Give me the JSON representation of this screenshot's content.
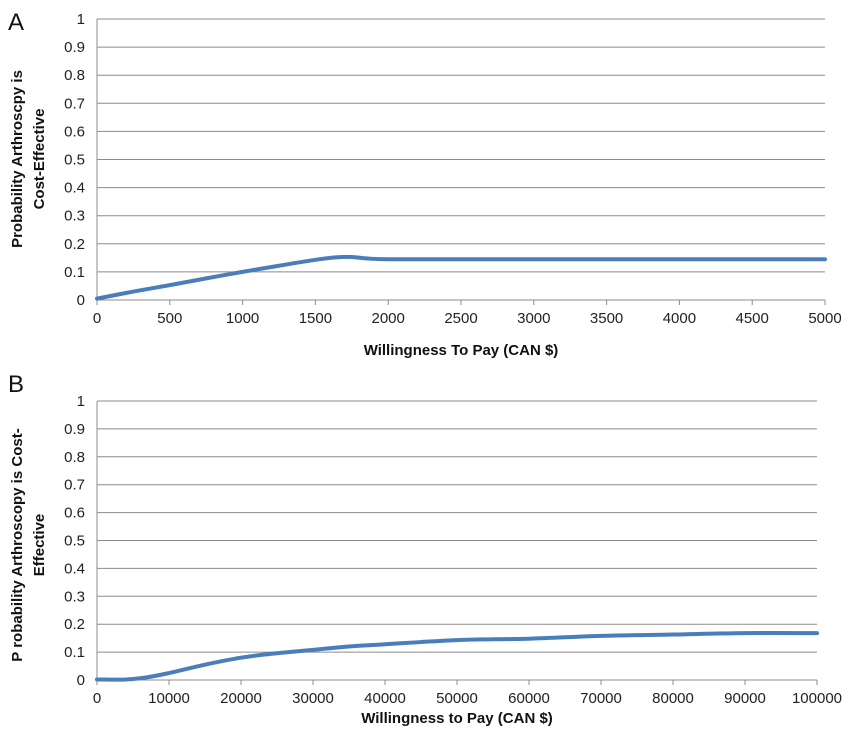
{
  "chart_data": [
    {
      "panel_label": "A",
      "type": "line",
      "xlabel": "Willingness To Pay (CAN $)",
      "ylabel_lines": [
        "Probability Arthroscpy is",
        "Cost-Effective"
      ],
      "xlim": [
        0,
        5000
      ],
      "ylim": [
        0,
        1
      ],
      "x_ticks": [
        "0",
        "500",
        "1000",
        "1500",
        "2000",
        "2500",
        "3000",
        "3500",
        "4000",
        "4500",
        "5000"
      ],
      "y_ticks": [
        "0",
        "0.1",
        "0.2",
        "0.3",
        "0.4",
        "0.5",
        "0.6",
        "0.7",
        "0.8",
        "0.9",
        "1"
      ],
      "grid": "horizontal",
      "series_color": "#4a7ebb",
      "series": [
        {
          "x": [
            0,
            250,
            500,
            750,
            1000,
            1250,
            1500,
            1650,
            1750,
            1850,
            2000,
            2500,
            3000,
            3500,
            4000,
            4500,
            5000
          ],
          "y": [
            0.005,
            0.03,
            0.053,
            0.077,
            0.1,
            0.122,
            0.143,
            0.152,
            0.153,
            0.148,
            0.145,
            0.145,
            0.145,
            0.145,
            0.145,
            0.145,
            0.145
          ]
        }
      ]
    },
    {
      "panel_label": "B",
      "type": "line",
      "xlabel": "Willingness to Pay (CAN $)",
      "ylabel_lines": [
        "P robability Arthroscopy is Cost-",
        "Effective"
      ],
      "xlim": [
        0,
        100000
      ],
      "ylim": [
        0,
        1
      ],
      "x_ticks": [
        "0",
        "10000",
        "20000",
        "30000",
        "40000",
        "50000",
        "60000",
        "70000",
        "80000",
        "90000",
        "100000"
      ],
      "y_ticks": [
        "0",
        "0.1",
        "0.2",
        "0.3",
        "0.4",
        "0.5",
        "0.6",
        "0.7",
        "0.8",
        "0.9",
        "1"
      ],
      "grid": "horizontal",
      "series_color": "#4a7ebb",
      "series": [
        {
          "x": [
            0,
            4000,
            7000,
            10000,
            15000,
            20000,
            25000,
            30000,
            35000,
            40000,
            45000,
            50000,
            55000,
            60000,
            70000,
            80000,
            90000,
            100000
          ],
          "y": [
            0.002,
            0.002,
            0.01,
            0.025,
            0.055,
            0.08,
            0.096,
            0.108,
            0.12,
            0.128,
            0.136,
            0.143,
            0.146,
            0.148,
            0.158,
            0.163,
            0.168,
            0.168
          ]
        }
      ]
    }
  ]
}
